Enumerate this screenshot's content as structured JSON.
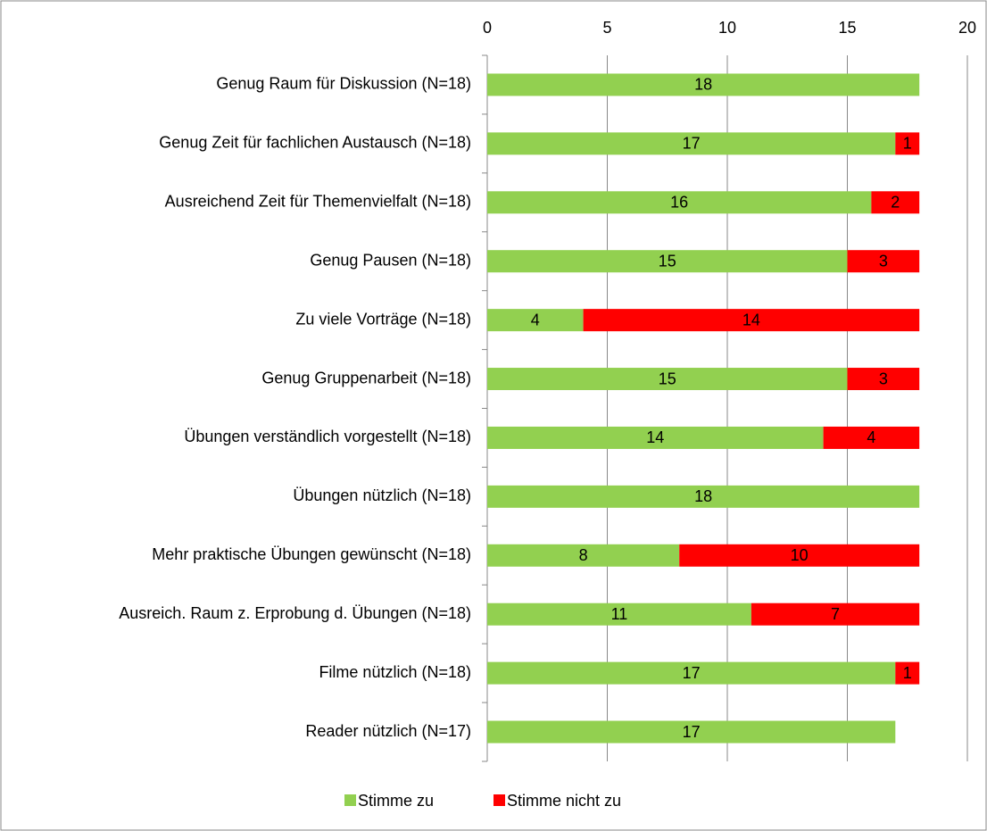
{
  "chart_data": {
    "type": "stacked_bar_horizontal",
    "categories": [
      "Genug Raum für Diskussion (N=18)",
      "Genug Zeit für fachlichen Austausch (N=18)",
      "Ausreichend Zeit für Themenvielfalt (N=18)",
      "Genug Pausen (N=18)",
      "Zu viele Vorträge (N=18)",
      "Genug Gruppenarbeit (N=18)",
      "Übungen verständlich vorgestellt (N=18)",
      "Übungen nützlich (N=18)",
      "Mehr praktische Übungen gewünscht (N=18)",
      "Ausreich. Raum z. Erprobung d. Übungen (N=18)",
      "Filme nützlich (N=18)",
      "Reader nützlich (N=17)"
    ],
    "series": [
      {
        "name": "Stimme zu",
        "color": "#92d050",
        "values": [
          18,
          17,
          16,
          15,
          4,
          15,
          14,
          18,
          8,
          11,
          17,
          17
        ]
      },
      {
        "name": "Stimme nicht zu",
        "color": "#ff0000",
        "values": [
          null,
          1,
          2,
          3,
          14,
          3,
          4,
          null,
          10,
          7,
          1,
          null
        ]
      }
    ],
    "xlim": [
      0,
      20
    ],
    "xticks": [
      0,
      5,
      10,
      15,
      20
    ],
    "grid": true,
    "legend": "bottom"
  }
}
